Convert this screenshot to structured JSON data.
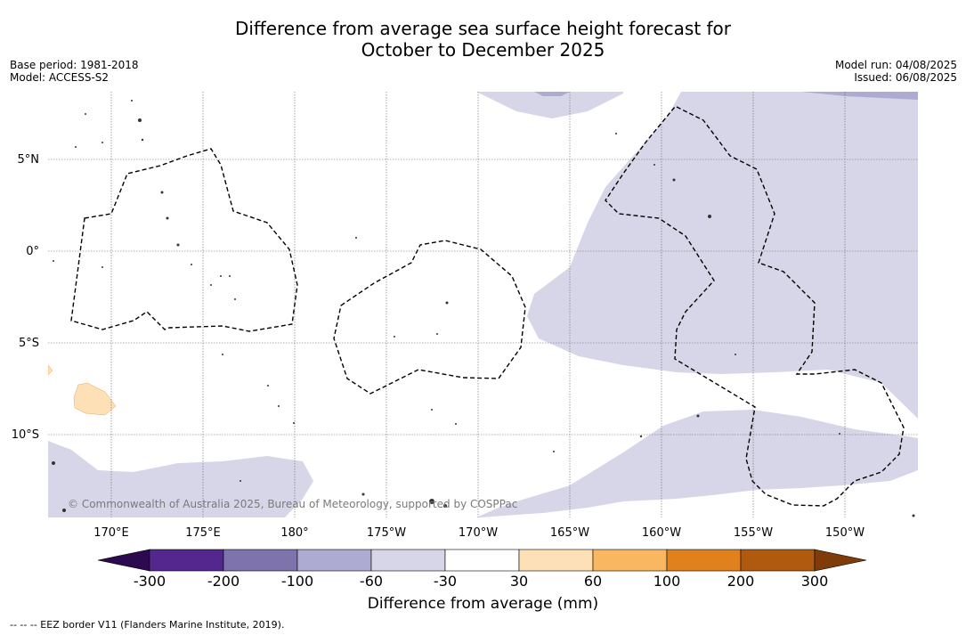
{
  "title": {
    "line1": "Difference from average sea surface height forecast for",
    "line2": "October to December 2025"
  },
  "meta_left": {
    "base_period": "Base period: 1981-2018",
    "model": "Model: ACCESS-S2"
  },
  "meta_right": {
    "model_run": "Model run: 04/08/2025",
    "issued": "Issued: 06/08/2025"
  },
  "map": {
    "lat_labels": [
      "5°N",
      "0°",
      "5°S",
      "10°S"
    ],
    "lon_labels": [
      "170°E",
      "175°E",
      "180°",
      "175°W",
      "170°W",
      "165°W",
      "160°W",
      "155°W",
      "150°W"
    ],
    "copyright": "© Commonwealth of Australia 2025, Bureau of Meteorology, supported by COSPPac",
    "colors": {
      "neg_30_60": "#d6d6e8",
      "neg_60_100": "#aeabd2",
      "pos_30_60": "#fde0b6",
      "land": "#333333"
    }
  },
  "colorbar": {
    "ticks": [
      "-300",
      "-200",
      "-100",
      "-60",
      "-30",
      "30",
      "60",
      "100",
      "200",
      "300"
    ],
    "colors": [
      "#2d0a4f",
      "#54278f",
      "#7f73ae",
      "#aeabd2",
      "#d6d6e8",
      "#ffffff",
      "#fde0b6",
      "#f8b760",
      "#e0811d",
      "#b05a10",
      "#7f3b08"
    ],
    "label": "Difference from average (mm)"
  },
  "footnote": "--  --  -- EEZ border V11 (Flanders Marine Institute, 2019)."
}
